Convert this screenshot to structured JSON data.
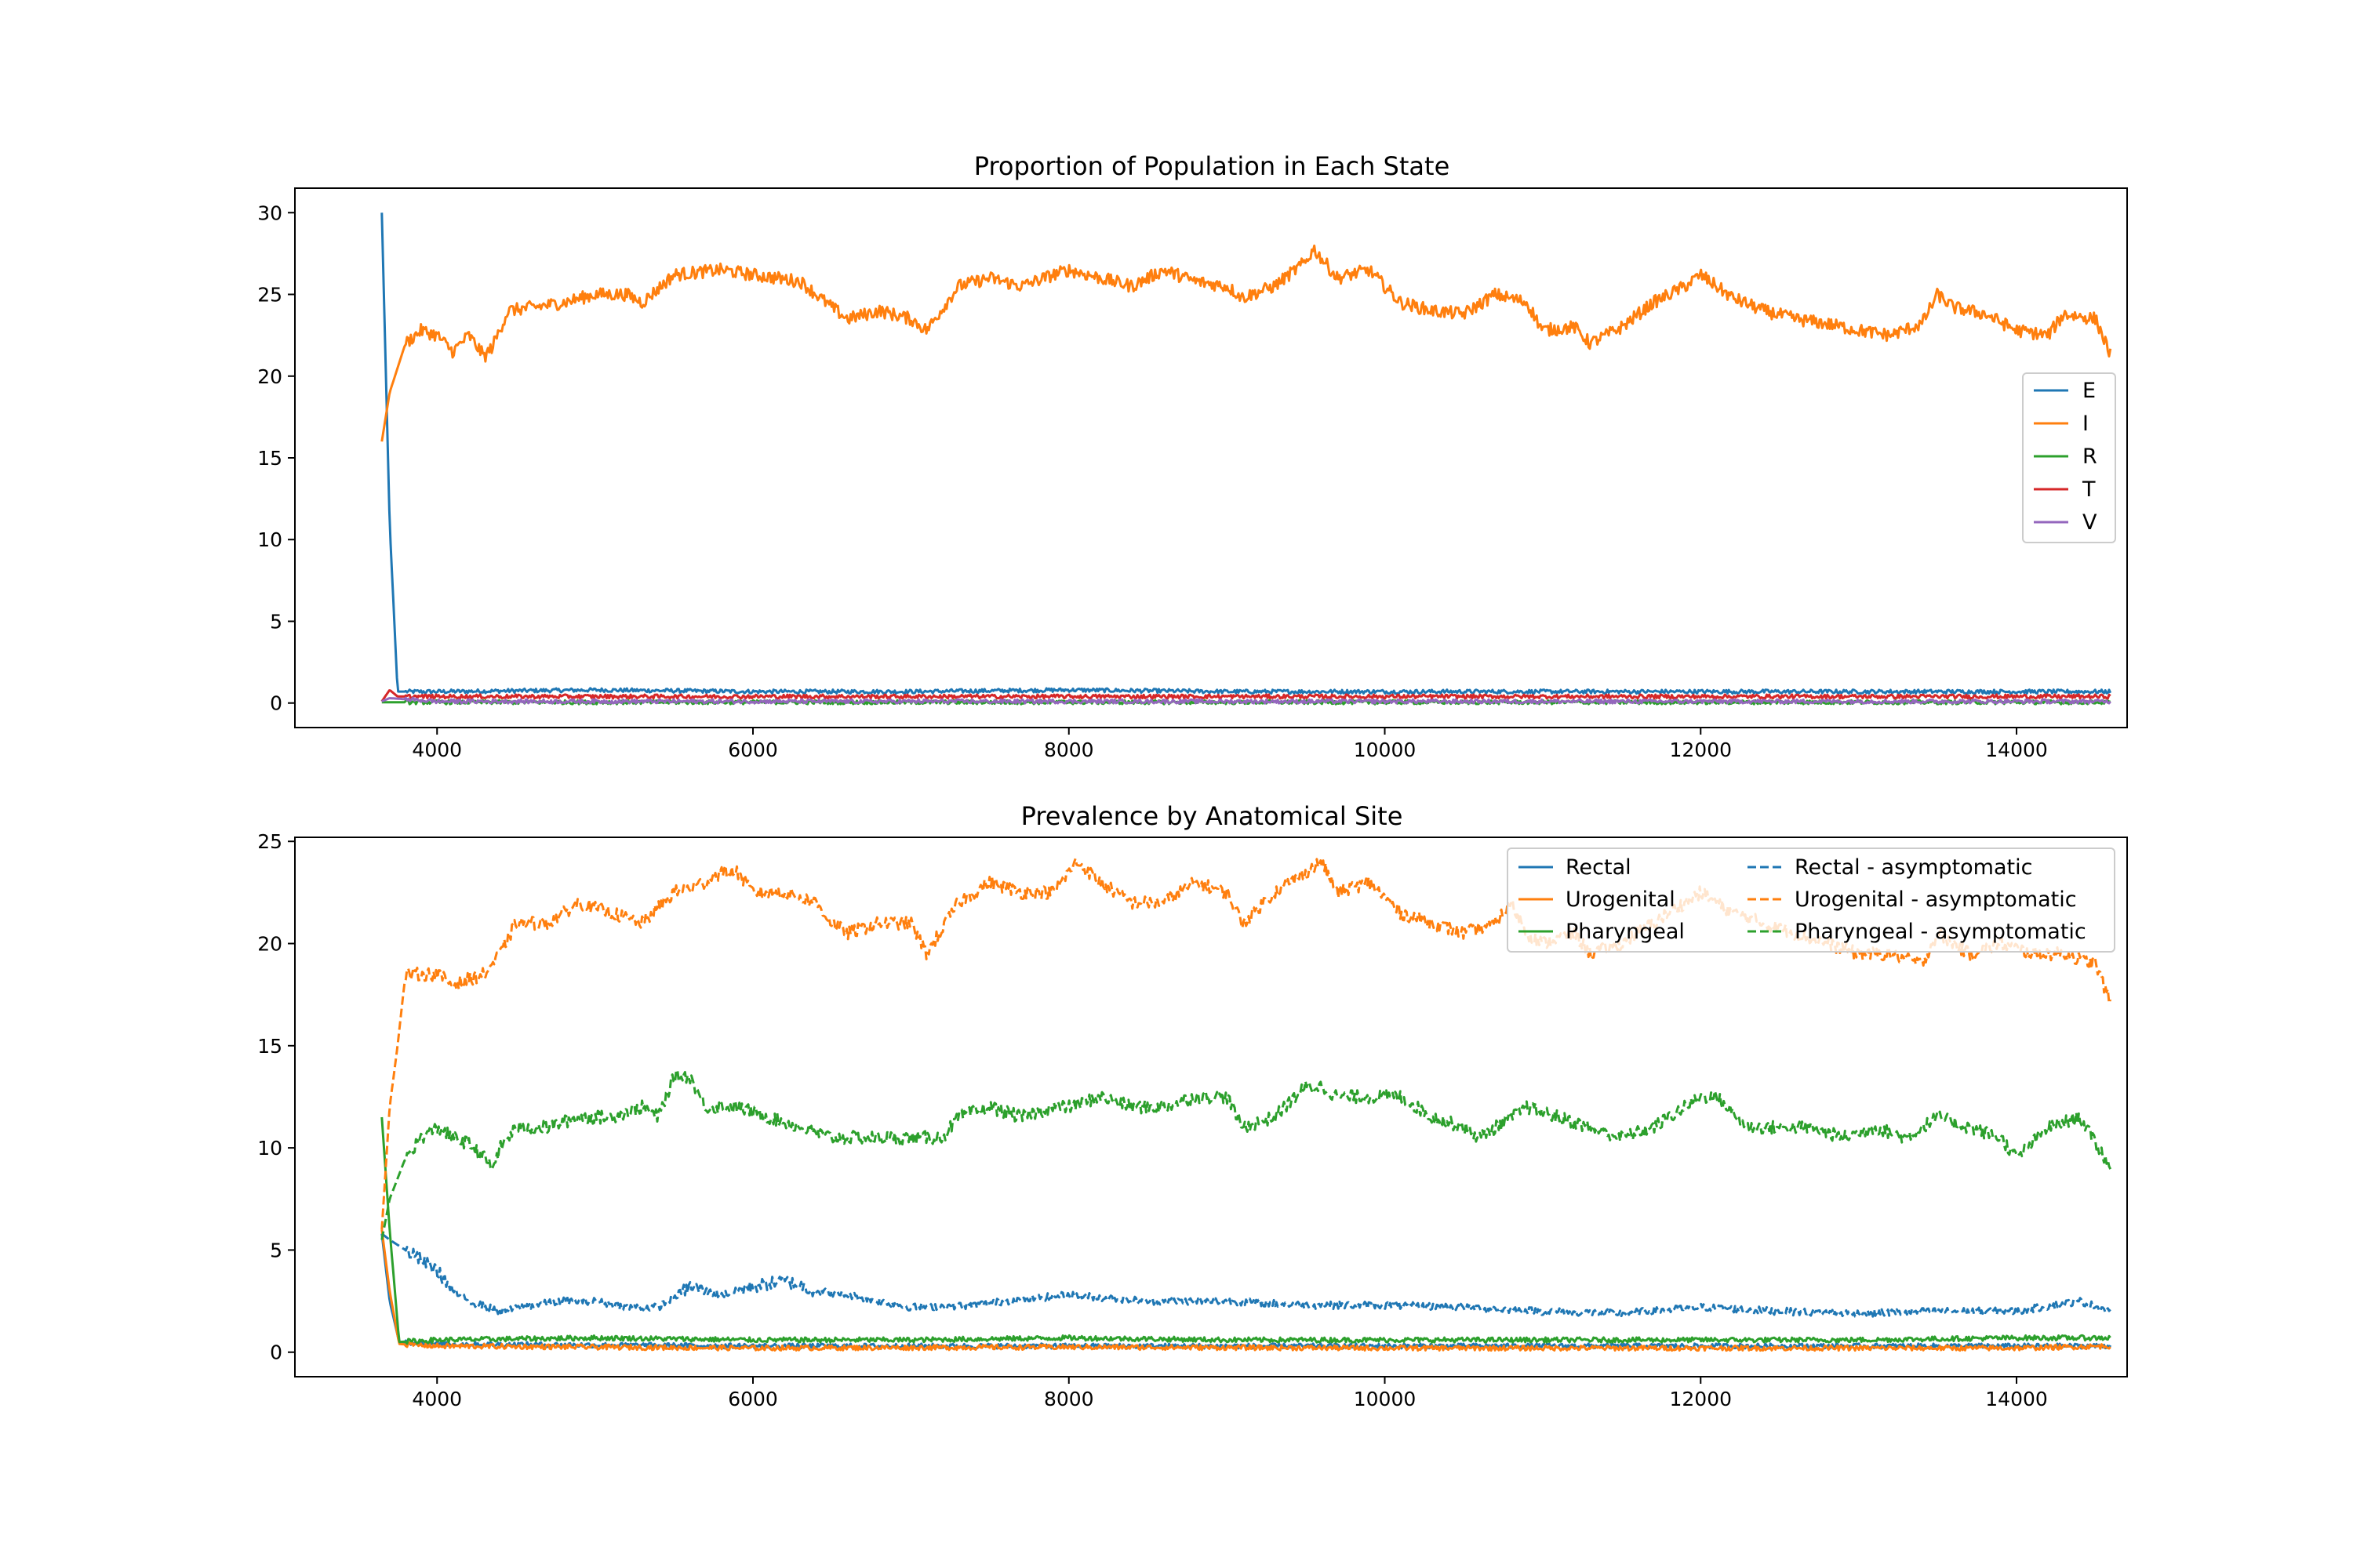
{
  "chart_data": [
    {
      "type": "line",
      "title": "Proportion of Population in Each State",
      "xlabel": "",
      "ylabel": "",
      "xlim": [
        3100,
        14700
      ],
      "ylim": [
        -1.5,
        31.5
      ],
      "xticks": [
        4000,
        6000,
        8000,
        10000,
        12000,
        14000
      ],
      "yticks": [
        0,
        5,
        10,
        15,
        20,
        25,
        30
      ],
      "grid": false,
      "legend_position": "center-right",
      "series": [
        {
          "name": "E",
          "color": "#1f77b4",
          "style": "solid",
          "x": [
            3650,
            3700,
            3750,
            4000,
            5000,
            6000,
            7000,
            8000,
            9000,
            10000,
            11000,
            12000,
            13000,
            14000,
            14600
          ],
          "values": [
            30,
            11,
            0.7,
            0.7,
            0.8,
            0.7,
            0.7,
            0.8,
            0.7,
            0.7,
            0.7,
            0.7,
            0.7,
            0.7,
            0.7
          ]
        },
        {
          "name": "I",
          "color": "#ff7f0e",
          "style": "solid",
          "x": [
            3650,
            3700,
            3800,
            3900,
            4000,
            4100,
            4200,
            4300,
            4350,
            4450,
            4600,
            4800,
            5000,
            5200,
            5300,
            5500,
            5800,
            6000,
            6300,
            6500,
            6600,
            6800,
            7000,
            7100,
            7300,
            7500,
            7700,
            7900,
            8000,
            8200,
            8400,
            8600,
            8800,
            9000,
            9100,
            9300,
            9500,
            9550,
            9700,
            9900,
            10100,
            10300,
            10500,
            10700,
            10900,
            11000,
            11200,
            11300,
            11500,
            11700,
            11900,
            12000,
            12200,
            12400,
            12600,
            12800,
            13000,
            13200,
            13400,
            13500,
            13600,
            13800,
            14000,
            14200,
            14300,
            14500,
            14600
          ],
          "values": [
            16,
            19,
            22,
            22.8,
            22.5,
            21.5,
            22.5,
            21.2,
            21.8,
            24,
            24.2,
            24.5,
            25,
            25,
            24.5,
            26.2,
            26.5,
            26.2,
            25.8,
            24.2,
            23.5,
            24,
            23.5,
            22.8,
            25.5,
            26,
            25.5,
            26.2,
            26.5,
            26,
            25.5,
            26.5,
            25.8,
            25.5,
            24.8,
            25.5,
            27,
            27.8,
            26,
            26.5,
            24.5,
            24,
            23.8,
            25,
            24.5,
            22.8,
            23,
            22,
            23,
            24.5,
            25.5,
            26.2,
            24.8,
            24,
            23.5,
            23.2,
            22.8,
            22.5,
            23.2,
            25,
            24.2,
            23.8,
            22.8,
            22.5,
            23.8,
            23.5,
            21.2
          ]
        },
        {
          "name": "R",
          "color": "#2ca02c",
          "style": "solid",
          "x": [
            3650,
            14600
          ],
          "values": [
            0.05,
            0.05
          ]
        },
        {
          "name": "T",
          "color": "#d62728",
          "style": "solid",
          "x": [
            3650,
            3700,
            3750,
            4000,
            6000,
            8000,
            10000,
            12000,
            14000,
            14600
          ],
          "values": [
            0.1,
            0.8,
            0.4,
            0.4,
            0.4,
            0.4,
            0.4,
            0.4,
            0.4,
            0.4
          ]
        },
        {
          "name": "V",
          "color": "#9467bd",
          "style": "solid",
          "x": [
            3650,
            3700,
            4000,
            6000,
            8000,
            10000,
            12000,
            14000,
            14600
          ],
          "values": [
            0.1,
            0.3,
            0.1,
            0.1,
            0.1,
            0.1,
            0.1,
            0.1,
            0.1
          ]
        }
      ]
    },
    {
      "type": "line",
      "title": "Prevalence by Anatomical Site",
      "xlabel": "",
      "ylabel": "",
      "xlim": [
        3100,
        14700
      ],
      "ylim": [
        -1.2,
        25.2
      ],
      "xticks": [
        4000,
        6000,
        8000,
        10000,
        12000,
        14000
      ],
      "yticks": [
        0,
        5,
        10,
        15,
        20,
        25
      ],
      "grid": false,
      "legend_position": "top-right",
      "legend_columns": 2,
      "series": [
        {
          "name": "Rectal",
          "color": "#1f77b4",
          "style": "solid",
          "x": [
            3650,
            3700,
            3760,
            4000,
            6000,
            8000,
            10000,
            12000,
            14000,
            14600
          ],
          "values": [
            5.8,
            2.5,
            0.5,
            0.4,
            0.3,
            0.3,
            0.3,
            0.3,
            0.3,
            0.3
          ]
        },
        {
          "name": "Urogenital",
          "color": "#ff7f0e",
          "style": "solid",
          "x": [
            3650,
            3700,
            3760,
            4000,
            6000,
            8000,
            10000,
            12000,
            14000,
            14600
          ],
          "values": [
            6,
            3,
            0.4,
            0.3,
            0.2,
            0.25,
            0.2,
            0.2,
            0.2,
            0.3
          ]
        },
        {
          "name": "Pharyngeal",
          "color": "#2ca02c",
          "style": "solid",
          "x": [
            3650,
            3700,
            3760,
            4000,
            5000,
            6000,
            7000,
            8000,
            9000,
            10000,
            11000,
            12000,
            13000,
            14000,
            14600
          ],
          "values": [
            11.5,
            6,
            0.5,
            0.6,
            0.7,
            0.6,
            0.6,
            0.7,
            0.6,
            0.6,
            0.6,
            0.6,
            0.6,
            0.7,
            0.7
          ]
        },
        {
          "name": "Rectal - asymptomatic",
          "color": "#1f77b4",
          "style": "dashed",
          "x": [
            3650,
            3700,
            3800,
            3900,
            4000,
            4100,
            4200,
            4400,
            4600,
            4800,
            5000,
            5200,
            5400,
            5600,
            5800,
            6000,
            6200,
            6400,
            6600,
            6800,
            7000,
            7400,
            7600,
            8000,
            8500,
            9000,
            9500,
            10000,
            10500,
            11000,
            11500,
            12000,
            12500,
            13000,
            13500,
            14000,
            14400,
            14600
          ],
          "values": [
            5.8,
            5.5,
            5,
            4.5,
            4,
            3,
            2.5,
            2,
            2.3,
            2.5,
            2.5,
            2.2,
            2.2,
            3.2,
            2.8,
            3.2,
            3.5,
            3,
            2.8,
            2.5,
            2.2,
            2.3,
            2.5,
            2.8,
            2.5,
            2.5,
            2.3,
            2.3,
            2.2,
            2,
            1.9,
            2.2,
            2,
            1.9,
            2,
            2,
            2.5,
            2
          ]
        },
        {
          "name": "Urogenital - asymptomatic",
          "color": "#ff7f0e",
          "style": "dashed",
          "x": [
            3650,
            3700,
            3750,
            3800,
            4000,
            4100,
            4300,
            4400,
            4500,
            4700,
            4900,
            5100,
            5300,
            5500,
            5700,
            5800,
            5900,
            6000,
            6200,
            6400,
            6500,
            6600,
            6800,
            7000,
            7100,
            7300,
            7500,
            7700,
            7900,
            8050,
            8200,
            8400,
            8600,
            8800,
            9000,
            9100,
            9300,
            9500,
            9600,
            9700,
            9900,
            10100,
            10300,
            10500,
            10700,
            10800,
            10900,
            11000,
            11200,
            11300,
            11500,
            11700,
            11900,
            12000,
            12200,
            12400,
            12600,
            12800,
            13000,
            13200,
            13400,
            13500,
            13700,
            13900,
            14100,
            14300,
            14500,
            14600
          ],
          "values": [
            6,
            12,
            15,
            18.5,
            18.5,
            18,
            18.5,
            19.5,
            21,
            21,
            22,
            21.5,
            21,
            22.5,
            23,
            23.5,
            23.5,
            22.5,
            22.5,
            22,
            21,
            20.5,
            21,
            21,
            19.5,
            22,
            23,
            22.5,
            22.5,
            24,
            23,
            22,
            22,
            23,
            22.5,
            21,
            22.5,
            23.5,
            24,
            22.5,
            23,
            21.5,
            21,
            20.5,
            21,
            22,
            20.5,
            20,
            20.5,
            19.5,
            20,
            21,
            22,
            22.5,
            21.5,
            21,
            20.5,
            20,
            19.5,
            19.5,
            19,
            20.5,
            19.5,
            20,
            19.5,
            19.5,
            19,
            17
          ]
        },
        {
          "name": "Pharyngeal - asymptomatic",
          "color": "#2ca02c",
          "style": "dashed",
          "x": [
            3650,
            3700,
            3750,
            3800,
            3900,
            4000,
            4100,
            4200,
            4300,
            4350,
            4400,
            4500,
            4700,
            4900,
            5100,
            5300,
            5400,
            5500,
            5600,
            5700,
            5900,
            6100,
            6300,
            6500,
            6600,
            6800,
            7000,
            7200,
            7300,
            7500,
            7700,
            7900,
            8000,
            8200,
            8400,
            8600,
            8800,
            9000,
            9100,
            9300,
            9500,
            9600,
            9700,
            9900,
            10100,
            10300,
            10500,
            10600,
            10700,
            10900,
            11100,
            11300,
            11500,
            11700,
            11900,
            12000,
            12100,
            12300,
            12500,
            12700,
            12900,
            13100,
            13300,
            13500,
            13700,
            13900,
            14000,
            14200,
            14400,
            14600
          ],
          "values": [
            5.5,
            7.5,
            8.5,
            9.5,
            10.5,
            11,
            10.5,
            10.2,
            9.5,
            9,
            10,
            11,
            11,
            11.5,
            11.5,
            12,
            11.5,
            13.5,
            13.5,
            12,
            12,
            11.5,
            11,
            10.5,
            10.5,
            10.5,
            10.5,
            10.5,
            11.5,
            12,
            11.5,
            12,
            12,
            12.5,
            12,
            12,
            12.5,
            12.5,
            11,
            11.5,
            13,
            13,
            12.5,
            12.5,
            12.5,
            11.5,
            11,
            10.5,
            11,
            12,
            11.5,
            11,
            10.5,
            11,
            12,
            12.5,
            12.5,
            11,
            11,
            11,
            10.5,
            11,
            10.5,
            11.5,
            11,
            10.5,
            9.5,
            11,
            11.5,
            9
          ]
        }
      ]
    }
  ]
}
